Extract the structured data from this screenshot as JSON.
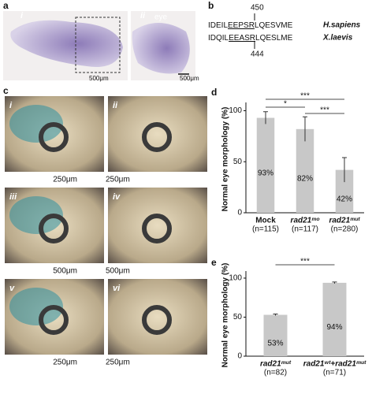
{
  "panel_a": {
    "label": "a",
    "sub_labels": [
      "i",
      "ii"
    ],
    "eye_label": "eye",
    "scales": [
      "500μm",
      "500μm"
    ]
  },
  "panel_b": {
    "label": "b",
    "top_number": "450",
    "bottom_number": "444",
    "rows": [
      {
        "seq": [
          "IDEIL",
          "EEPSR",
          "LQESVME"
        ],
        "species": "H.sapiens"
      },
      {
        "seq": [
          "IDQIL",
          "EEASR",
          "LQESLME"
        ],
        "species": "X.laevis"
      }
    ]
  },
  "panel_c": {
    "label": "c",
    "sub_labels": [
      "i",
      "ii",
      "iii",
      "iv",
      "v",
      "vi"
    ],
    "scales": [
      "250μm",
      "250μm",
      "500μm",
      "500μm",
      "250μm",
      "250μm"
    ]
  },
  "chart_data": [
    {
      "type": "bar",
      "panel_label": "d",
      "y_label": "Normal eye morphology (%)",
      "categories": [
        "Mock",
        "rad21ᵐᵒ",
        "rad21ᵐᵘᵗ"
      ],
      "n_labels": [
        "(n=115)",
        "(n=117)",
        "(n=280)"
      ],
      "values": [
        93,
        82,
        42
      ],
      "errors": [
        6,
        12,
        12
      ],
      "value_labels": [
        "93%",
        "82%",
        "42%"
      ],
      "color": "#c8c8c8",
      "ylim": [
        0,
        105
      ],
      "yticks": [
        0,
        50,
        100
      ],
      "annotations": [
        "***",
        "*",
        "***"
      ]
    },
    {
      "type": "bar",
      "panel_label": "e",
      "y_label": "Normal eye morphology (%)",
      "categories": [
        "rad21ᵐᵘᵗ",
        "rad21ʷᵗ+rad21ᵐᵘᵗ"
      ],
      "n_labels": [
        "(n=82)",
        "(n=71)"
      ],
      "values": [
        53,
        94
      ],
      "errors": [
        1,
        1
      ],
      "value_labels": [
        "53%",
        "94%"
      ],
      "color": "#c8c8c8",
      "ylim": [
        0,
        105
      ],
      "yticks": [
        0,
        50,
        100
      ],
      "annotations": [
        "***"
      ]
    }
  ]
}
